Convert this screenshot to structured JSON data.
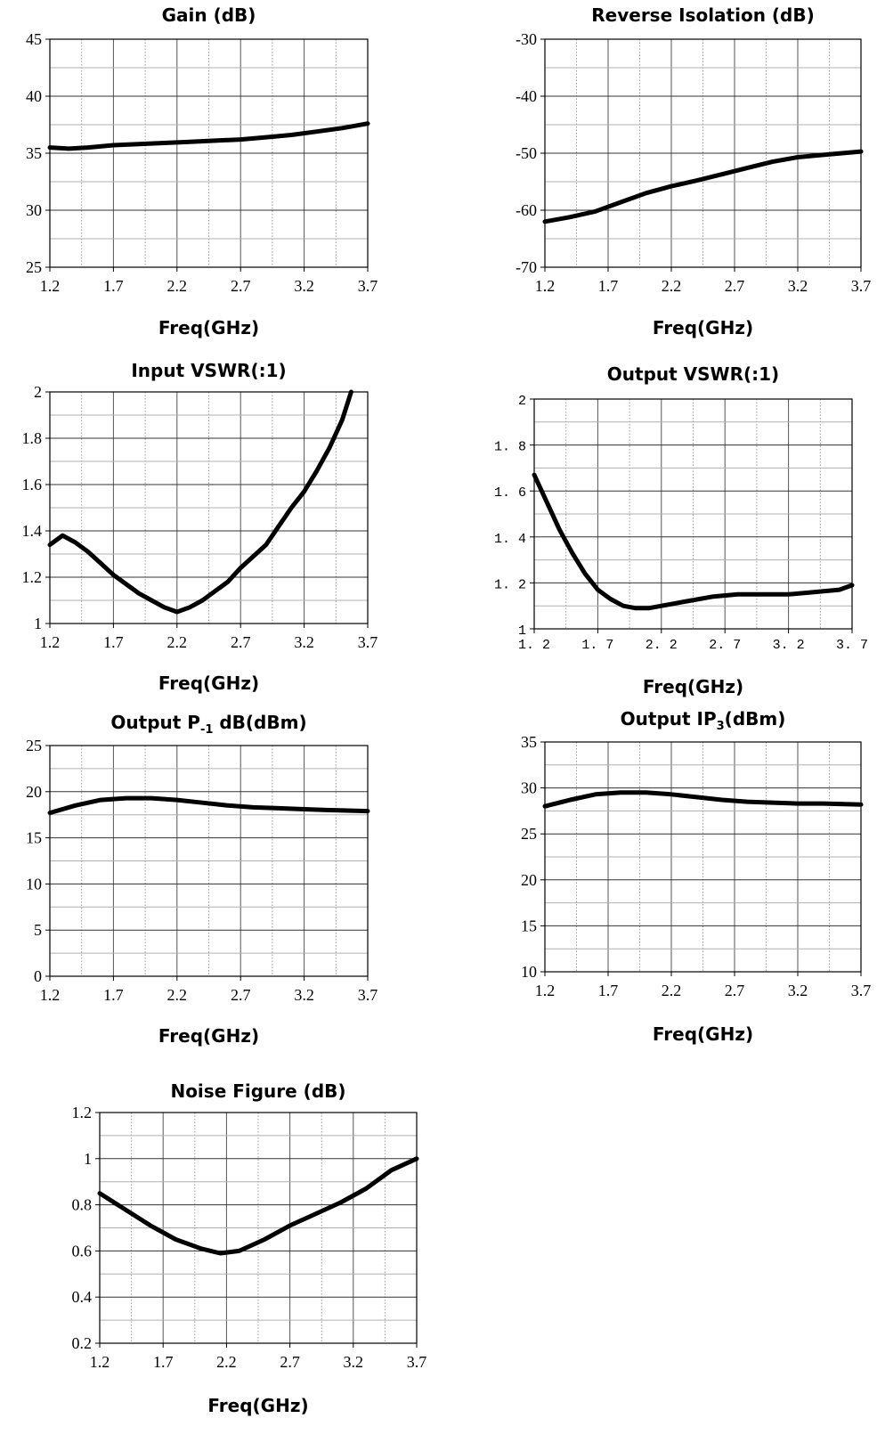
{
  "chart_data": [
    {
      "type": "line",
      "title": "Gain (dB)",
      "xlabel": "Freq(GHz)",
      "ylabel": "",
      "xlim": [
        1.2,
        3.7
      ],
      "ylim": [
        25,
        45
      ],
      "xticks": [
        "1.2",
        "1.7",
        "2.2",
        "2.7",
        "3.2",
        "3.7"
      ],
      "yticks": [
        "25",
        "30",
        "35",
        "40",
        "45"
      ],
      "grid": true,
      "series": [
        {
          "x": [
            1.2,
            1.35,
            1.5,
            1.7,
            1.9,
            2.1,
            2.3,
            2.5,
            2.7,
            2.9,
            3.1,
            3.3,
            3.5,
            3.7
          ],
          "values": [
            35.5,
            35.4,
            35.5,
            35.7,
            35.8,
            35.9,
            36.0,
            36.1,
            36.2,
            36.4,
            36.6,
            36.9,
            37.2,
            37.6
          ]
        }
      ]
    },
    {
      "type": "line",
      "title": "Reverse Isolation (dB)",
      "xlabel": "Freq(GHz)",
      "ylabel": "",
      "xlim": [
        1.2,
        3.7
      ],
      "ylim": [
        -70,
        -30
      ],
      "xticks": [
        "1.2",
        "1.7",
        "2.2",
        "2.7",
        "3.2",
        "3.7"
      ],
      "yticks": [
        "-70",
        "-60",
        "-50",
        "-40",
        "-30"
      ],
      "grid": true,
      "series": [
        {
          "x": [
            1.2,
            1.4,
            1.6,
            1.8,
            2.0,
            2.2,
            2.4,
            2.6,
            2.8,
            3.0,
            3.2,
            3.4,
            3.7
          ],
          "values": [
            -62.0,
            -61.2,
            -60.2,
            -58.6,
            -57.0,
            -55.8,
            -54.8,
            -53.7,
            -52.6,
            -51.5,
            -50.7,
            -50.3,
            -49.7
          ]
        }
      ]
    },
    {
      "type": "line",
      "title": "Input VSWR(:1)",
      "xlabel": "Freq(GHz)",
      "ylabel": "",
      "xlim": [
        1.2,
        3.7
      ],
      "ylim": [
        1,
        2
      ],
      "xticks": [
        "1.2",
        "1.7",
        "2.2",
        "2.7",
        "3.2",
        "3.7"
      ],
      "yticks": [
        "1",
        "1.2",
        "1.4",
        "1.6",
        "1.8",
        "2"
      ],
      "grid": true,
      "series": [
        {
          "x": [
            1.2,
            1.3,
            1.4,
            1.5,
            1.6,
            1.7,
            1.8,
            1.9,
            2.0,
            2.1,
            2.2,
            2.3,
            2.4,
            2.5,
            2.6,
            2.7,
            2.8,
            2.9,
            3.0,
            3.1,
            3.2,
            3.3,
            3.4,
            3.5,
            3.57
          ],
          "values": [
            1.34,
            1.38,
            1.35,
            1.31,
            1.26,
            1.21,
            1.17,
            1.13,
            1.1,
            1.07,
            1.05,
            1.07,
            1.1,
            1.14,
            1.18,
            1.24,
            1.29,
            1.34,
            1.42,
            1.5,
            1.57,
            1.66,
            1.76,
            1.88,
            2.0
          ]
        }
      ]
    },
    {
      "type": "line",
      "title": "Output VSWR(:1)",
      "xlabel": "Freq(GHz)",
      "ylabel": "",
      "xlim": [
        1.2,
        3.7
      ],
      "ylim": [
        1,
        2
      ],
      "xticks": [
        "1. 2",
        "1. 7",
        "2. 2",
        "2. 7",
        "3. 2",
        "3. 7"
      ],
      "yticks": [
        "1",
        "1. 2",
        "1. 4",
        "1. 6",
        "1. 8",
        "2"
      ],
      "grid": true,
      "series": [
        {
          "x": [
            1.2,
            1.3,
            1.4,
            1.5,
            1.6,
            1.7,
            1.8,
            1.9,
            2.0,
            2.1,
            2.2,
            2.4,
            2.6,
            2.8,
            3.0,
            3.2,
            3.4,
            3.6,
            3.7
          ],
          "values": [
            1.67,
            1.55,
            1.43,
            1.33,
            1.24,
            1.17,
            1.13,
            1.1,
            1.09,
            1.09,
            1.1,
            1.12,
            1.14,
            1.15,
            1.15,
            1.15,
            1.16,
            1.17,
            1.19
          ]
        }
      ]
    },
    {
      "type": "line",
      "title_parts": [
        "Output P",
        "-1",
        " dB(dBm)"
      ],
      "xlabel": "Freq(GHz)",
      "ylabel": "",
      "xlim": [
        1.2,
        3.7
      ],
      "ylim": [
        0,
        25
      ],
      "xticks": [
        "1.2",
        "1.7",
        "2.2",
        "2.7",
        "3.2",
        "3.7"
      ],
      "yticks": [
        "0",
        "5",
        "10",
        "15",
        "20",
        "25"
      ],
      "grid": true,
      "series": [
        {
          "x": [
            1.2,
            1.4,
            1.6,
            1.8,
            2.0,
            2.2,
            2.4,
            2.6,
            2.8,
            3.0,
            3.2,
            3.4,
            3.7
          ],
          "values": [
            17.7,
            18.5,
            19.1,
            19.3,
            19.3,
            19.1,
            18.8,
            18.5,
            18.3,
            18.2,
            18.1,
            18.0,
            17.9
          ]
        }
      ]
    },
    {
      "type": "line",
      "title_parts": [
        "Output IP",
        "3",
        "(dBm)"
      ],
      "xlabel": "Freq(GHz)",
      "ylabel": "",
      "xlim": [
        1.2,
        3.7
      ],
      "ylim": [
        10,
        35
      ],
      "xticks": [
        "1.2",
        "1.7",
        "2.2",
        "2.7",
        "3.2",
        "3.7"
      ],
      "yticks": [
        "10",
        "15",
        "20",
        "25",
        "30",
        "35"
      ],
      "grid": true,
      "series": [
        {
          "x": [
            1.2,
            1.4,
            1.6,
            1.8,
            2.0,
            2.2,
            2.4,
            2.6,
            2.8,
            3.0,
            3.2,
            3.4,
            3.7
          ],
          "values": [
            28.0,
            28.7,
            29.3,
            29.5,
            29.5,
            29.3,
            29.0,
            28.7,
            28.5,
            28.4,
            28.3,
            28.3,
            28.2
          ]
        }
      ]
    },
    {
      "type": "line",
      "title": "Noise Figure (dB)",
      "xlabel": "Freq(GHz)",
      "ylabel": "",
      "xlim": [
        1.2,
        3.7
      ],
      "ylim": [
        0.2,
        1.2
      ],
      "xticks": [
        "1.2",
        "1.7",
        "2.2",
        "2.7",
        "3.2",
        "3.7"
      ],
      "yticks": [
        "0.2",
        "0.4",
        "0.6",
        "0.8",
        "1",
        "1.2"
      ],
      "grid": true,
      "series": [
        {
          "x": [
            1.2,
            1.4,
            1.6,
            1.8,
            2.0,
            2.15,
            2.3,
            2.5,
            2.7,
            2.9,
            3.1,
            3.3,
            3.5,
            3.7
          ],
          "values": [
            0.85,
            0.78,
            0.71,
            0.65,
            0.61,
            0.59,
            0.6,
            0.65,
            0.71,
            0.76,
            0.81,
            0.87,
            0.95,
            1.0
          ]
        }
      ]
    }
  ]
}
